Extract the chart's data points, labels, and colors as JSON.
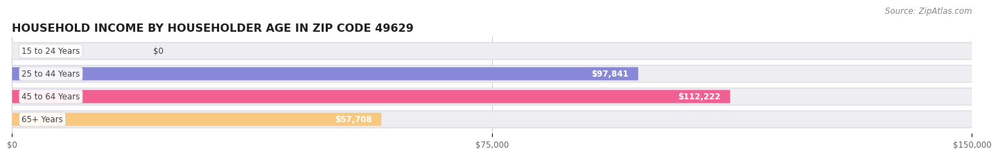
{
  "title": "HOUSEHOLD INCOME BY HOUSEHOLDER AGE IN ZIP CODE 49629",
  "source": "Source: ZipAtlas.com",
  "categories": [
    "15 to 24 Years",
    "25 to 44 Years",
    "45 to 64 Years",
    "65+ Years"
  ],
  "values": [
    0,
    97841,
    112222,
    57708
  ],
  "bar_colors": [
    "#62cece",
    "#8888d8",
    "#f06090",
    "#f8c880"
  ],
  "bar_bg_color": "#ededf2",
  "xlim": [
    0,
    150000
  ],
  "xticks": [
    0,
    75000,
    150000
  ],
  "xtick_labels": [
    "$0",
    "$75,000",
    "$150,000"
  ],
  "value_labels": [
    "$0",
    "$97,841",
    "$112,222",
    "$57,708"
  ],
  "title_fontsize": 11.5,
  "label_fontsize": 8.5,
  "source_fontsize": 8.5,
  "background_color": "#ffffff"
}
